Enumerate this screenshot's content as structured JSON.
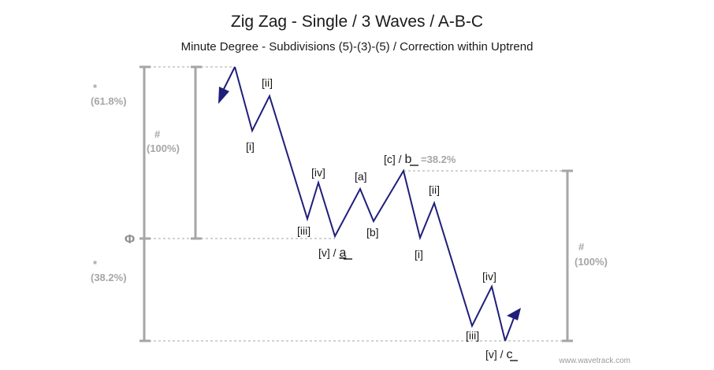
{
  "title": "Zig Zag - Single / 3 Waves / A-B-C",
  "subtitle": "Minute Degree - Subdivisions (5)-(3)-(5) / Correction within Uptrend",
  "left_ratios": {
    "upper_star": "*",
    "upper_pct": "(61.8%)",
    "mid_hash": "#",
    "mid_pct": "(100%)",
    "phi": "Φ",
    "lower_star": "*",
    "lower_pct": "(38.2%)"
  },
  "right_ratios": {
    "hash": "#",
    "pct": "(100%)"
  },
  "wave_labels": {
    "a_i": "[i]",
    "a_ii": "[ii]",
    "a_iii": "[iii]",
    "a_iv": "[iv]",
    "a_v_prefix": "[v] / ",
    "a_v_letter": "a",
    "b_a": "[a]",
    "b_b": "[b]",
    "b_c_prefix": "[c] / ",
    "b_c_letter": "b",
    "b_ratio": "=38.2%",
    "c_i": "[i]",
    "c_ii": "[ii]",
    "c_iii": "[iii]",
    "c_iv": "[iv]",
    "c_v_prefix": "[v] / ",
    "c_v_letter": "c"
  },
  "watermark": "www.wavetrack.com",
  "colors": {
    "wave": "#1f1f7a",
    "guide": "#a6a6a6",
    "text": "#1a1a1a"
  }
}
